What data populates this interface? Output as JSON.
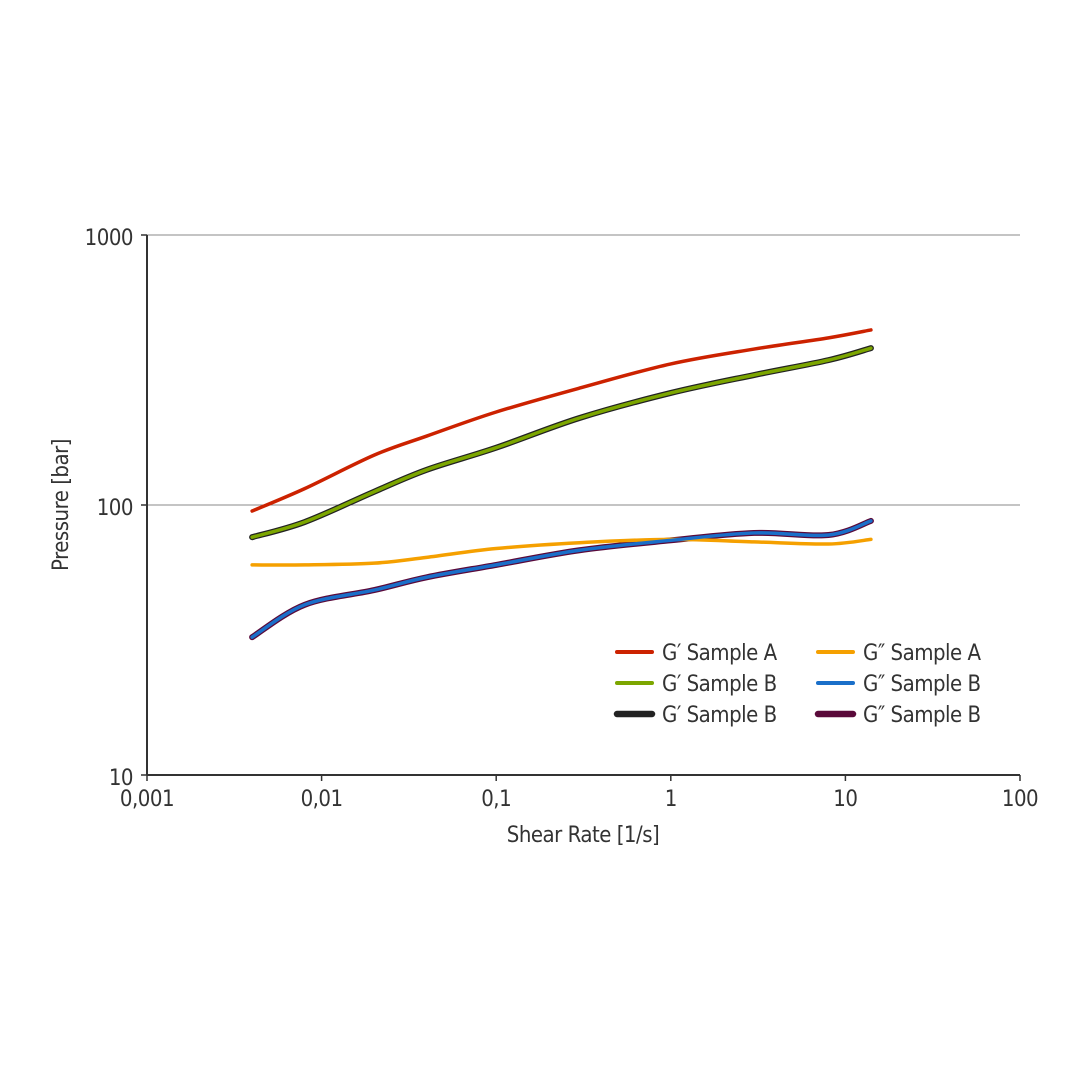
{
  "chart_data": {
    "type": "line",
    "x_label": "Shear Rate [1/s]",
    "y_label": "Pressure [bar]",
    "x": [
      0.004,
      0.008,
      0.02,
      0.04,
      0.1,
      0.3,
      1,
      3,
      8,
      14
    ],
    "xscale": "log",
    "yscale": "log",
    "xlim": [
      0.001,
      100
    ],
    "ylim": [
      10,
      1000
    ],
    "xticks": [
      {
        "value": 0.001,
        "label": "0,001"
      },
      {
        "value": 0.01,
        "label": "0,01"
      },
      {
        "value": 0.1,
        "label": "0,1"
      },
      1,
      10,
      100
    ],
    "yticks": [
      10,
      100,
      1000
    ],
    "grid": true,
    "legend": "lower right",
    "series": [
      {
        "name": "G′ Sample A",
        "color": "#cc2200",
        "values": [
          95,
          115,
          153,
          180,
          221,
          271,
          333,
          378,
          416,
          445
        ]
      },
      {
        "name": "G′ Sample B",
        "color": "#7ca600",
        "values": [
          76,
          86.5,
          112,
          135,
          163,
          210,
          260,
          303,
          344,
          381
        ]
      },
      {
        "name": "G′ Sample B",
        "color": "#222222",
        "values": [
          76,
          86.5,
          112,
          135,
          163,
          210,
          260,
          303,
          344,
          381
        ]
      },
      {
        "name": "G″ Sample A",
        "color": "#f5a000",
        "values": [
          60,
          60,
          60.9,
          64,
          69,
          72.5,
          74.6,
          73,
          71.7,
          74.6
        ]
      },
      {
        "name": "G″ Sample B",
        "color": "#1a6fc9",
        "values": [
          32.4,
          42.7,
          48.4,
          54,
          60,
          68,
          74,
          78.8,
          77.4,
          87.3
        ]
      },
      {
        "name": "G″ Sample B",
        "color": "#5a0a3a",
        "values": [
          32.4,
          42.7,
          48.4,
          54,
          60,
          68,
          74,
          78.8,
          77.4,
          87.3
        ]
      }
    ]
  }
}
